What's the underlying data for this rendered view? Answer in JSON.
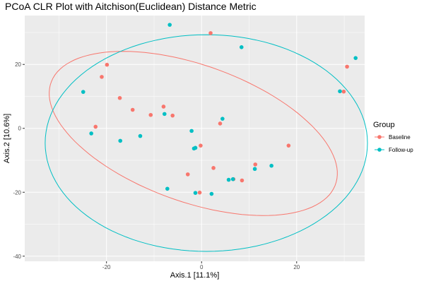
{
  "chart_data": {
    "type": "scatter",
    "title": "PCoA CLR Plot with Aitchison(Euclidean) Distance Metric",
    "xlabel": "Axis.1  [11.1%]",
    "ylabel": "Axis.2  [10.6%]",
    "xlim": [
      -37.2,
      34.3
    ],
    "ylim": [
      -41.6,
      35.3
    ],
    "x_ticks": [
      -20,
      0,
      20
    ],
    "y_ticks": [
      -40,
      -20,
      0,
      20
    ],
    "grid": true,
    "legend": {
      "title": "Group",
      "placement": "right",
      "items": [
        "Baseline",
        "Follow-up"
      ]
    },
    "series": [
      {
        "name": "Baseline",
        "color": "#f8766d",
        "points": [
          [
            -19.9,
            19.9
          ],
          [
            -21.0,
            16.1
          ],
          [
            -17.2,
            9.5
          ],
          [
            -14.5,
            5.8
          ],
          [
            -10.7,
            4.2
          ],
          [
            -8.0,
            6.8
          ],
          [
            -6.1,
            4.0
          ],
          [
            -22.3,
            0.5
          ],
          [
            -2.9,
            -14.4
          ],
          [
            -0.4,
            -20.1
          ],
          [
            -0.2,
            -5.4
          ],
          [
            1.9,
            29.8
          ],
          [
            2.5,
            -12.4
          ],
          [
            3.9,
            1.5
          ],
          [
            6.7,
            -15.9
          ],
          [
            8.5,
            -16.3
          ],
          [
            11.3,
            -11.3
          ],
          [
            18.3,
            -5.4
          ],
          [
            29.9,
            11.5
          ],
          [
            30.6,
            19.3
          ]
        ]
      },
      {
        "name": "Follow-up",
        "color": "#00bfc4",
        "points": [
          [
            -6.7,
            32.4
          ],
          [
            8.4,
            25.4
          ],
          [
            -24.9,
            11.4
          ],
          [
            -23.2,
            -1.6
          ],
          [
            -17.1,
            -3.9
          ],
          [
            -12.9,
            -2.4
          ],
          [
            -7.8,
            4.5
          ],
          [
            -1.6,
            -6.3
          ],
          [
            -1.3,
            -6.1
          ],
          [
            -2.1,
            -0.8
          ],
          [
            4.4,
            3.0
          ],
          [
            5.7,
            -16.1
          ],
          [
            6.6,
            -15.9
          ],
          [
            11.2,
            -12.7
          ],
          [
            14.7,
            -11.7
          ],
          [
            -1.3,
            -20.2
          ],
          [
            2.1,
            -20.5
          ],
          [
            -7.2,
            -18.9
          ],
          [
            29.1,
            11.6
          ],
          [
            32.4,
            22.0
          ]
        ]
      }
    ],
    "ellipses": [
      {
        "series": "Baseline",
        "center": [
          -1.75,
          -1.6
        ],
        "axes": [
          34.5,
          19.7
        ],
        "angle_deg": -35.6
      },
      {
        "series": "Follow-up",
        "center": [
          1.0,
          -4.6
        ],
        "axes": [
          33.9,
          33.9
        ],
        "angle_deg": 0
      }
    ]
  }
}
